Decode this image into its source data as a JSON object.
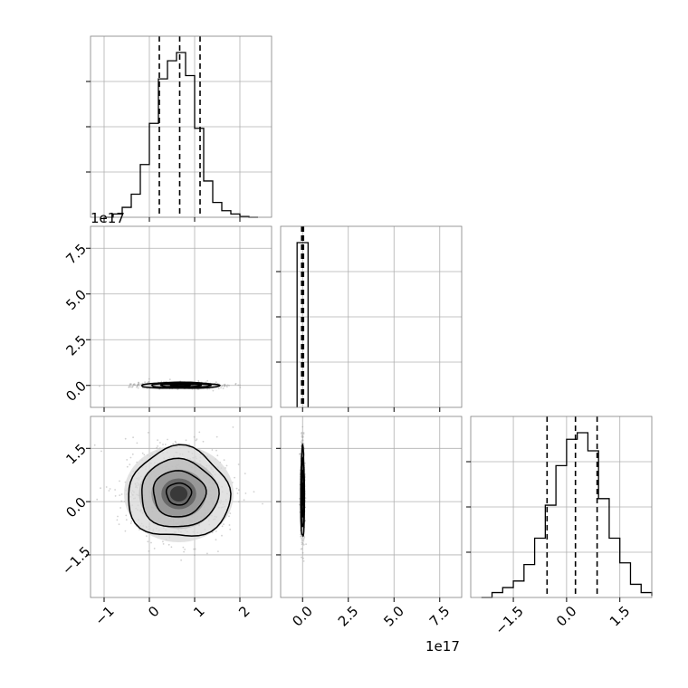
{
  "chart_data": {
    "type": "corner",
    "grid": true,
    "variables": [
      {
        "offset_text": "",
        "ticks": [
          "−1",
          "0",
          "1",
          "2"
        ],
        "range": [
          -1.3,
          2.7
        ]
      },
      {
        "offset_text": "1e17",
        "ticks": [
          "0.0",
          "2.5",
          "5.0",
          "7.5"
        ],
        "range": [
          -1.2,
          8.7
        ]
      },
      {
        "offset_text": "",
        "ticks": [
          "−1.5",
          "0.0",
          "1.5"
        ],
        "range": [
          -2.7,
          2.4
        ]
      }
    ],
    "marginals": [
      {
        "bins": [
          -1.0,
          -0.8,
          -0.6,
          -0.4,
          -0.2,
          0.0,
          0.2,
          0.4,
          0.6,
          0.8,
          1.0,
          1.2,
          1.4,
          1.6,
          1.8,
          2.0,
          2.2,
          2.4
        ],
        "counts": [
          0,
          2,
          6,
          14,
          32,
          57,
          84,
          95,
          100,
          86,
          54,
          22,
          9,
          4,
          2,
          0.5,
          0
        ],
        "quantiles": [
          0.22,
          0.67,
          1.12
        ]
      },
      {
        "bins": [
          -0.3,
          0.3
        ],
        "counts": [
          100
        ],
        "quantiles": [
          -0.05,
          0.0,
          0.05
        ]
      },
      {
        "bins": [
          -2.4,
          -2.1,
          -1.8,
          -1.5,
          -1.2,
          -0.9,
          -0.6,
          -0.3,
          0.0,
          0.3,
          0.6,
          0.9,
          1.2,
          1.5,
          1.8,
          2.1,
          2.4
        ],
        "counts": [
          0,
          3,
          6,
          10,
          20,
          36,
          56,
          80,
          96,
          100,
          89,
          60,
          36,
          21,
          8,
          3,
          1
        ],
        "quantiles": [
          -0.55,
          0.25,
          0.86
        ]
      }
    ],
    "pairs": [
      {
        "row": 1,
        "col": 0,
        "center": [
          0.68,
          0.0
        ],
        "spread": [
          0.42,
          0.08
        ]
      },
      {
        "row": 2,
        "col": 0,
        "center": [
          0.65,
          0.22
        ],
        "spread": [
          0.55,
          0.62
        ]
      },
      {
        "row": 2,
        "col": 1,
        "center": [
          0.0,
          0.22
        ],
        "spread": [
          0.05,
          0.62
        ]
      }
    ]
  }
}
